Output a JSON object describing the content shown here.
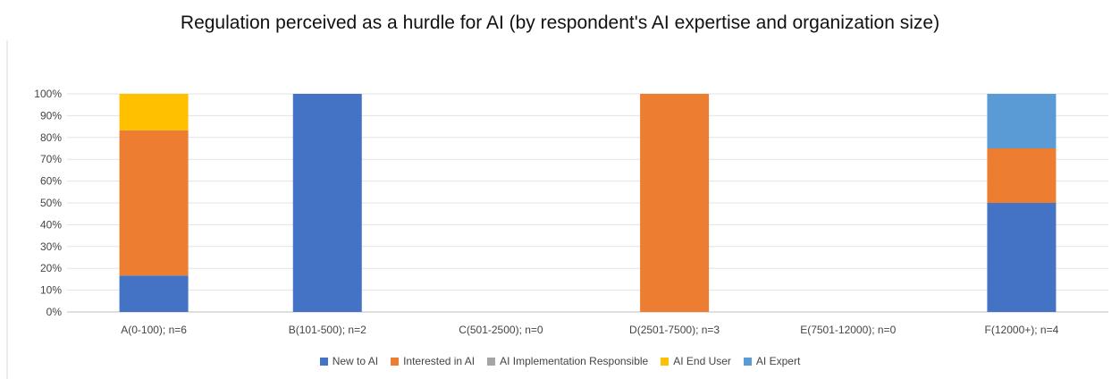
{
  "chart_data": {
    "type": "bar",
    "stacked": true,
    "title": "Regulation perceived as a hurdle for AI (by respondent's AI expertise and organization size)",
    "categories": [
      "A(0-100); n=6",
      "B(101-500); n=2",
      "C(501-2500); n=0",
      "D(2501-7500); n=3",
      "E(7501-12000); n=0",
      "F(12000+); n=4"
    ],
    "series": [
      {
        "name": "New to AI",
        "color": "#4472C4",
        "values": [
          16.7,
          100,
          0,
          0,
          0,
          50
        ]
      },
      {
        "name": "Interested in AI",
        "color": "#ED7D31",
        "values": [
          66.6,
          0,
          0,
          100,
          0,
          25
        ]
      },
      {
        "name": "AI Implementation Responsible",
        "color": "#A5A5A5",
        "values": [
          0,
          0,
          0,
          0,
          0,
          0
        ]
      },
      {
        "name": "AI End User",
        "color": "#FFC000",
        "values": [
          16.7,
          0,
          0,
          0,
          0,
          0
        ]
      },
      {
        "name": "AI Expert",
        "color": "#5B9BD5",
        "values": [
          0,
          0,
          0,
          0,
          0,
          25
        ]
      }
    ],
    "yticks": [
      "0%",
      "10%",
      "20%",
      "30%",
      "40%",
      "50%",
      "60%",
      "70%",
      "80%",
      "90%",
      "100%"
    ],
    "ylim": [
      0,
      100
    ],
    "grid": true,
    "legend_position": "bottom"
  }
}
